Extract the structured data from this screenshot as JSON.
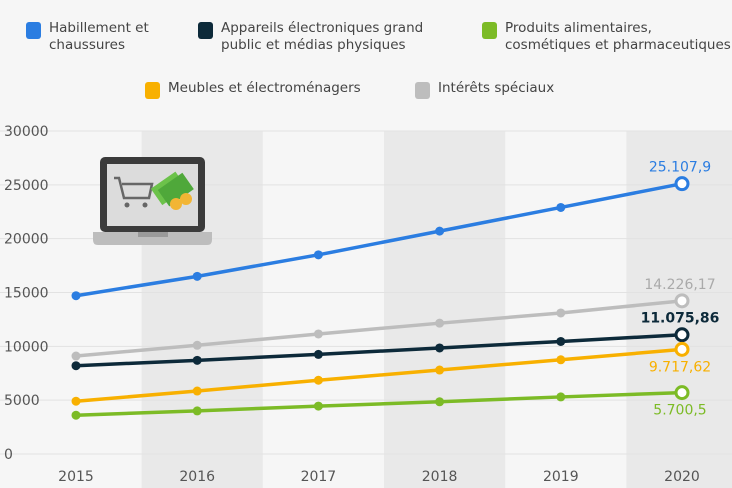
{
  "chart_data": {
    "type": "line",
    "title": "",
    "xlabel": "",
    "ylabel": "",
    "x": [
      "2015",
      "2016",
      "2017",
      "2018",
      "2019",
      "2020"
    ],
    "ylim": [
      0,
      30000
    ],
    "yticks": [
      "0",
      "5000",
      "10000",
      "15000",
      "20000",
      "25000",
      "30000"
    ],
    "ytick_values": [
      0,
      5000,
      10000,
      15000,
      20000,
      25000,
      30000
    ],
    "grid": true,
    "legend_position": "top",
    "series": [
      {
        "name": "Habillement et\nchaussures",
        "color": "#2b7de1",
        "values": [
          14700,
          16500,
          18500,
          20700,
          22900,
          25107.9
        ],
        "end_label": "25.107,9",
        "label_pos": "above"
      },
      {
        "name": "Appareils électroniques grand\npublic et médias physiques",
        "color": "#0d2a3a",
        "values": [
          8200,
          8700,
          9250,
          9850,
          10450,
          11075.86
        ],
        "end_label": "11.075,86",
        "label_pos": "above"
      },
      {
        "name": "Produits alimentaires,\ncosmétiques et pharmaceutiques",
        "color": "#7cbb26",
        "values": [
          3600,
          4000,
          4450,
          4850,
          5300,
          5700.5
        ],
        "end_label": "5.700,5",
        "label_pos": "below"
      },
      {
        "name": "Meubles et électroménagers",
        "color": "#f8b000",
        "values": [
          4900,
          5850,
          6850,
          7800,
          8750,
          9717.62
        ],
        "end_label": "9.717,62",
        "label_pos": "below"
      },
      {
        "name": "Intérêts spéciaux",
        "color": "#bdbdbd",
        "values": [
          9100,
          10100,
          11150,
          12150,
          13100,
          14226.17
        ],
        "end_label": "14.226,17",
        "label_pos": "above"
      }
    ]
  }
}
